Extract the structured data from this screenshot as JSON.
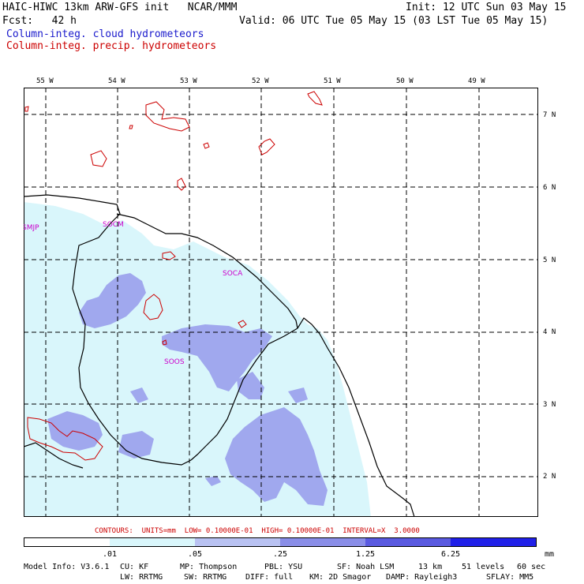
{
  "header": {
    "title": "HAIC-HIWC 13km ARW-GFS init   NCAR/MMM",
    "init": "Init: 12 UTC Sun 03 May 15",
    "fcst": "Fcst:   42 h",
    "valid": "Valid: 06 UTC Tue 05 May 15 (03 LST Tue 05 May 15)",
    "legend_cloud": "Column-integ. cloud hydrometeors",
    "legend_precip": "Column-integ. precip. hydrometeors"
  },
  "map": {
    "lon_labels": [
      "55 W",
      "54 W",
      "53 W",
      "52 W",
      "51 W",
      "50 W",
      "49 W"
    ],
    "lat_labels": [
      "7 N",
      "6 N",
      "5 N",
      "4 N",
      "3 N",
      "2 N"
    ],
    "stations": [
      "SMJP",
      "SOCM",
      "SOCA",
      "SOOS"
    ],
    "colors": {
      "cloud_light": "#d9f6fb",
      "cloud_mid": "#a0a8ee",
      "precip": "#cc0000",
      "coast": "#000000",
      "grid": "#000000",
      "station": "#cc00cc"
    }
  },
  "contours_note": "CONTOURS:  UNITS=mm  LOW= 0.10000E-01  HIGH= 0.10000E-01  INTERVAL=X  3.0000",
  "colorbar": {
    "labels": [
      ".01",
      ".05",
      ".25",
      "1.25",
      "6.25"
    ],
    "units": "mm",
    "colors": [
      "#ffffff",
      "#d9f6fb",
      "#b9c2f2",
      "#8a8ee8",
      "#5a5ae0",
      "#2020e8"
    ]
  },
  "model_info": {
    "line1": [
      "Model Info: V3.6.1",
      "CU: KF",
      "MP: Thompson",
      "PBL: YSU",
      "SF: Noah LSM",
      "13 km",
      "51 levels",
      "60 sec"
    ],
    "line2": [
      "LW: RRTMG",
      "SW: RRTMG",
      "DIFF: full",
      "KM: 2D Smagor",
      "DAMP: Rayleigh3",
      "SFLAY: MM5"
    ]
  }
}
